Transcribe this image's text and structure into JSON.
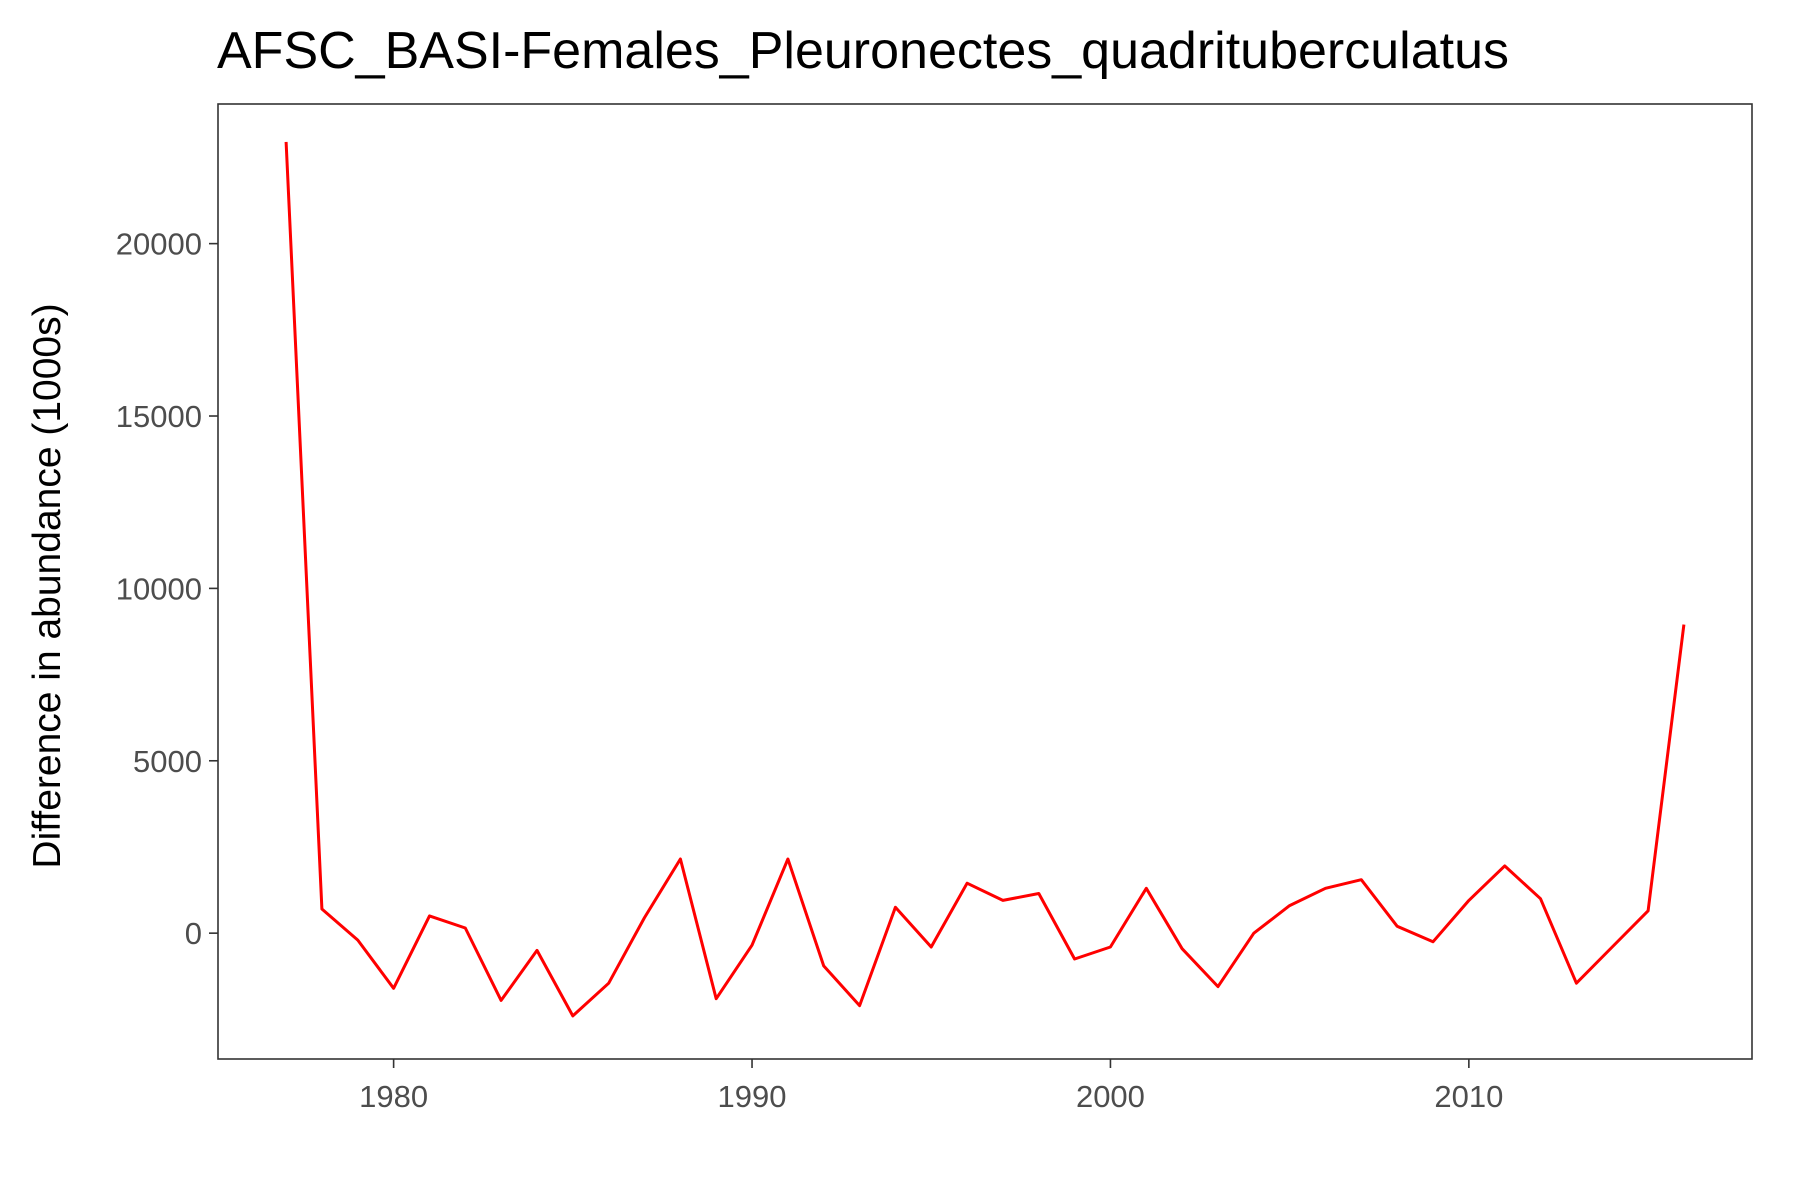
{
  "chart_data": {
    "type": "line",
    "title": "AFSC_BASI-Females_Pleuronectes_quadrituberculatus",
    "xlabel": "",
    "ylabel": "Difference in abundance (1000s)",
    "xlim": [
      1975.1,
      2017.9
    ],
    "ylim": [
      -3650,
      24050
    ],
    "x_ticks": [
      1980,
      1990,
      2000,
      2010
    ],
    "y_ticks": [
      0,
      5000,
      10000,
      15000,
      20000
    ],
    "grid": false,
    "legend": "none",
    "series": [
      {
        "color": "#ff0000",
        "x": [
          1977,
          1978,
          1979,
          1980,
          1981,
          1982,
          1983,
          1984,
          1985,
          1986,
          1987,
          1988,
          1989,
          1990,
          1991,
          1992,
          1993,
          1994,
          1995,
          1996,
          1997,
          1998,
          1999,
          2000,
          2001,
          2002,
          2003,
          2004,
          2005,
          2006,
          2007,
          2008,
          2009,
          2010,
          2011,
          2012,
          2013,
          2014,
          2015,
          2016
        ],
        "y": [
          22950,
          700,
          -200,
          -1600,
          500,
          150,
          -1950,
          -500,
          -2400,
          -1450,
          450,
          2150,
          -1900,
          -350,
          2150,
          -950,
          -2100,
          750,
          -400,
          1450,
          950,
          1150,
          -750,
          -400,
          1300,
          -450,
          -1550,
          0,
          800,
          1300,
          1550,
          200,
          -250,
          950,
          1950,
          1000,
          -1450,
          -400,
          650,
          8950
        ]
      }
    ],
    "colors": {
      "line": "#ff0000",
      "panel_border": "#333333",
      "tick_label": "#4d4d4d",
      "title": "#000000"
    }
  }
}
